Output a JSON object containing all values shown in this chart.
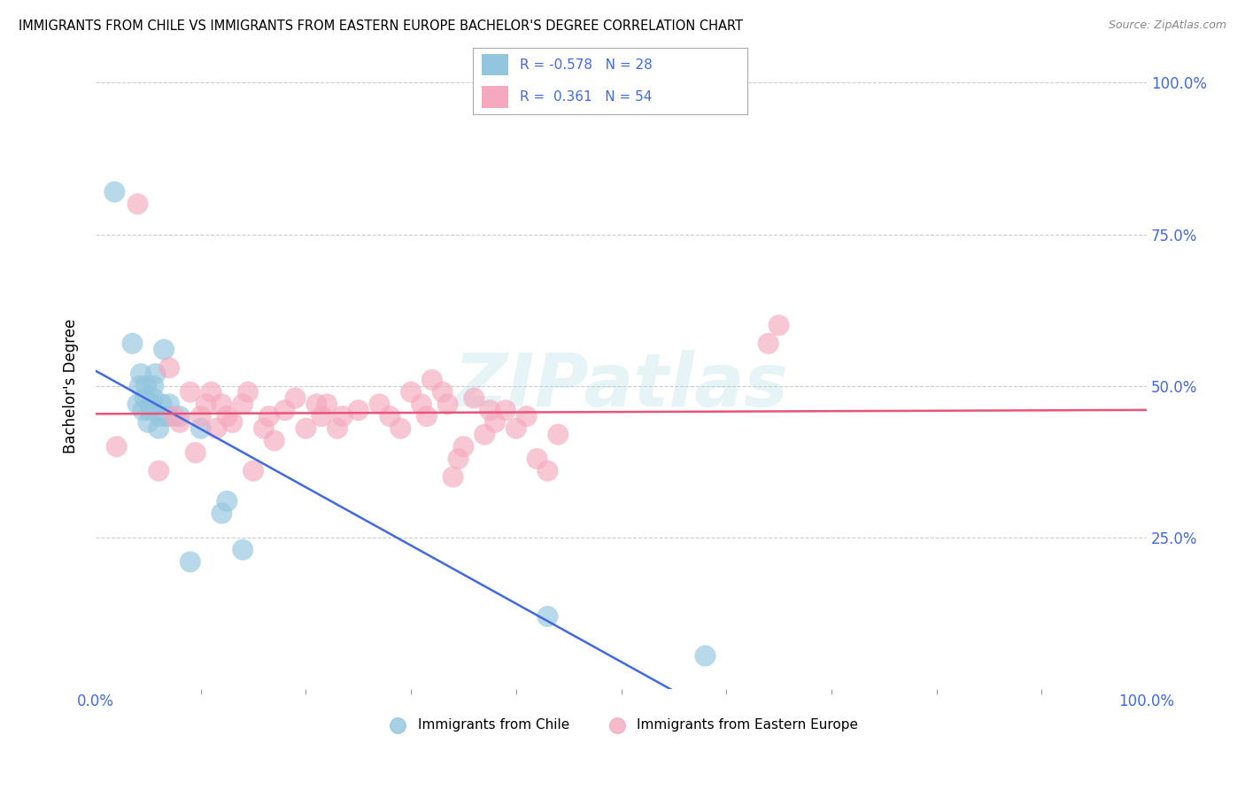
{
  "title": "IMMIGRANTS FROM CHILE VS IMMIGRANTS FROM EASTERN EUROPE BACHELOR'S DEGREE CORRELATION CHART",
  "source": "Source: ZipAtlas.com",
  "ylabel": "Bachelor's Degree",
  "legend_r_chile": "-0.578",
  "legend_n_chile": "28",
  "legend_r_eastern": "0.361",
  "legend_n_eastern": "54",
  "chile_color": "#92c5de",
  "eastern_color": "#f4a9be",
  "chile_line_color": "#4169E1",
  "eastern_line_color": "#e8547a",
  "watermark": "ZIPatlas",
  "chile_x": [
    0.018,
    0.035,
    0.04,
    0.042,
    0.043,
    0.045,
    0.047,
    0.048,
    0.05,
    0.052,
    0.053,
    0.055,
    0.055,
    0.057,
    0.06,
    0.062,
    0.063,
    0.065,
    0.068,
    0.07,
    0.08,
    0.09,
    0.1,
    0.12,
    0.125,
    0.14,
    0.43,
    0.58
  ],
  "chile_y": [
    0.82,
    0.57,
    0.47,
    0.5,
    0.52,
    0.46,
    0.48,
    0.5,
    0.44,
    0.46,
    0.47,
    0.48,
    0.5,
    0.52,
    0.43,
    0.45,
    0.47,
    0.56,
    0.45,
    0.47,
    0.45,
    0.21,
    0.43,
    0.29,
    0.31,
    0.23,
    0.12,
    0.055
  ],
  "eastern_x": [
    0.02,
    0.04,
    0.06,
    0.07,
    0.075,
    0.08,
    0.09,
    0.095,
    0.1,
    0.105,
    0.11,
    0.115,
    0.12,
    0.125,
    0.13,
    0.14,
    0.145,
    0.15,
    0.16,
    0.165,
    0.17,
    0.18,
    0.19,
    0.2,
    0.21,
    0.215,
    0.22,
    0.23,
    0.235,
    0.25,
    0.27,
    0.28,
    0.29,
    0.3,
    0.31,
    0.315,
    0.32,
    0.33,
    0.335,
    0.34,
    0.345,
    0.35,
    0.36,
    0.37,
    0.375,
    0.38,
    0.39,
    0.4,
    0.41,
    0.42,
    0.43,
    0.44,
    0.64,
    0.65
  ],
  "eastern_y": [
    0.4,
    0.8,
    0.36,
    0.53,
    0.45,
    0.44,
    0.49,
    0.39,
    0.45,
    0.47,
    0.49,
    0.43,
    0.47,
    0.45,
    0.44,
    0.47,
    0.49,
    0.36,
    0.43,
    0.45,
    0.41,
    0.46,
    0.48,
    0.43,
    0.47,
    0.45,
    0.47,
    0.43,
    0.45,
    0.46,
    0.47,
    0.45,
    0.43,
    0.49,
    0.47,
    0.45,
    0.51,
    0.49,
    0.47,
    0.35,
    0.38,
    0.4,
    0.48,
    0.42,
    0.46,
    0.44,
    0.46,
    0.43,
    0.45,
    0.38,
    0.36,
    0.42,
    0.57,
    0.6
  ],
  "xlim": [
    0.0,
    1.0
  ],
  "ylim": [
    0.0,
    1.0
  ],
  "background_color": "#ffffff",
  "grid_color": "#cccccc",
  "tick_color": "#4169E1"
}
